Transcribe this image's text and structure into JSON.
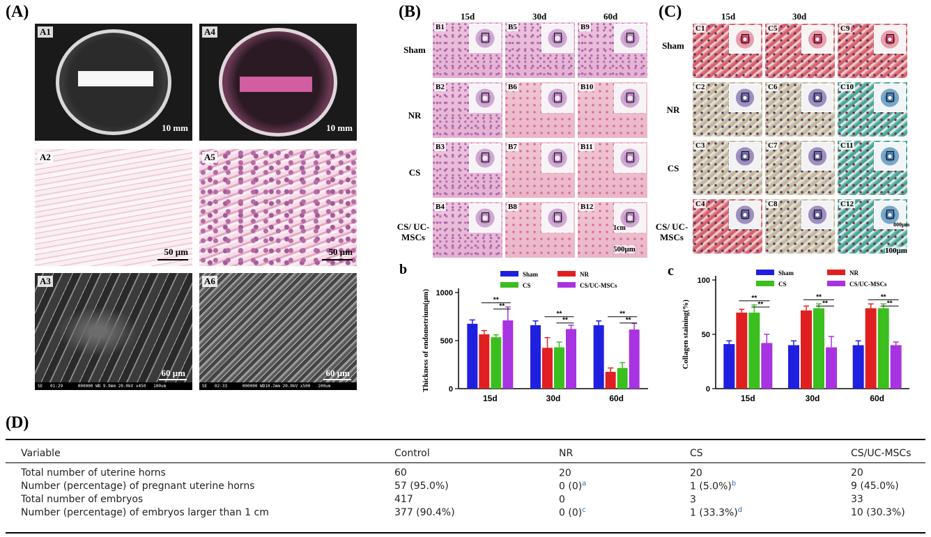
{
  "panelA": {
    "label": "(A)",
    "tiles": [
      {
        "id": "A1",
        "scale": "10 mm"
      },
      {
        "id": "A4",
        "scale": "10 mm"
      },
      {
        "id": "A2",
        "scale": "50 μm"
      },
      {
        "id": "A5",
        "scale": "50 μm"
      },
      {
        "id": "A3",
        "scale": "60 μm",
        "footer": "SE   01:29      000000 WD 9.9mm 20.0kV x450   100um"
      },
      {
        "id": "A6",
        "scale": "60 μm",
        "footer": "SE   02:33      000000 WD10.2mm 20.0kV x500   100um"
      }
    ]
  },
  "panelB": {
    "label": "(B)",
    "cols": [
      "15d",
      "30d",
      "60d"
    ],
    "rows": [
      "Sham",
      "NR",
      "CS",
      "CS/ UC-MSCs"
    ],
    "tiles": [
      "B1",
      "B5",
      "B9",
      "B2",
      "B6",
      "B10",
      "B3",
      "B7",
      "B11",
      "B4",
      "B8",
      "B12"
    ],
    "inset_scale": "1cm",
    "scale": "500μm"
  },
  "panelC": {
    "label": "(C)",
    "cols": [
      "15d",
      "30d"
    ],
    "rows": [
      "Sham",
      "NR",
      "CS",
      "CS/ UC-MSCs"
    ],
    "tiles": [
      "C1",
      "C5",
      "C9",
      "C2",
      "C6",
      "C10",
      "C3",
      "C7",
      "C11",
      "C4",
      "C8",
      "C12"
    ],
    "inset_scale": "800μm",
    "scale": "100μm"
  },
  "chart_b": {
    "label": "b",
    "sig": "**"
  },
  "chart_c": {
    "label": "c",
    "sig": "**"
  },
  "chart_data": [
    {
      "type": "bar",
      "ylabel": "Thickness of endometrium(μm)",
      "categories": [
        "15d",
        "30d",
        "60d"
      ],
      "ylim": [
        0,
        1000
      ],
      "yticks": [
        0,
        500,
        1000
      ],
      "legend_position": "top",
      "series": [
        {
          "name": "Sham",
          "color": "#1f1fe0",
          "values": [
            675,
            660,
            660
          ],
          "errors": [
            40,
            45,
            45
          ]
        },
        {
          "name": "NR",
          "color": "#e02020",
          "values": [
            565,
            425,
            175
          ],
          "errors": [
            40,
            105,
            40
          ]
        },
        {
          "name": "CS",
          "color": "#3bbf1f",
          "values": [
            535,
            430,
            215
          ],
          "errors": [
            25,
            55,
            55
          ]
        },
        {
          "name": "CS/UC-MSCs",
          "color": "#a833e0",
          "values": [
            710,
            620,
            615
          ],
          "errors": [
            140,
            40,
            65
          ]
        }
      ]
    },
    {
      "type": "bar",
      "ylabel": "Collagen staining(%)",
      "categories": [
        "15d",
        "30d",
        "60d"
      ],
      "ylim": [
        0,
        100
      ],
      "yticks": [
        0,
        50,
        100
      ],
      "legend_position": "top",
      "series": [
        {
          "name": "Sham",
          "color": "#1f1fe0",
          "values": [
            41,
            40,
            40
          ],
          "errors": [
            3,
            4,
            4
          ]
        },
        {
          "name": "NR",
          "color": "#e02020",
          "values": [
            70,
            72,
            74
          ],
          "errors": [
            3,
            4,
            4
          ]
        },
        {
          "name": "CS",
          "color": "#3bbf1f",
          "values": [
            70,
            74,
            74
          ],
          "errors": [
            7,
            4,
            4
          ]
        },
        {
          "name": "CS/UC-MSCs",
          "color": "#a833e0",
          "values": [
            42,
            38,
            40
          ],
          "errors": [
            8,
            10,
            3
          ]
        }
      ]
    }
  ],
  "panelD": {
    "label": "(D)",
    "headers": [
      "Variable",
      "Control",
      "NR",
      "CS",
      "CS/UC-MSCs"
    ],
    "rows": [
      {
        "var": "Total number of uterine horns",
        "control": "60",
        "nr": "20",
        "nr_sup": "",
        "cs": "20",
        "cs_sup": "",
        "ucmsc": "20"
      },
      {
        "var": "Number (percentage) of pregnant uterine horns",
        "control": "57 (95.0%)",
        "nr": "0 (0)",
        "nr_sup": "a",
        "cs": "1 (5.0%)",
        "cs_sup": "b",
        "ucmsc": "9 (45.0%)"
      },
      {
        "var": "Total number of embryos",
        "control": "417",
        "nr": "0",
        "nr_sup": "",
        "cs": "3",
        "cs_sup": "",
        "ucmsc": "33"
      },
      {
        "var": "Number (percentage) of embryos larger than 1 cm",
        "control": "377 (90.4%)",
        "nr": "0 (0)",
        "nr_sup": "c",
        "cs": "1 (33.3%)",
        "cs_sup": "d",
        "ucmsc": "10 (30.3%)"
      }
    ]
  }
}
